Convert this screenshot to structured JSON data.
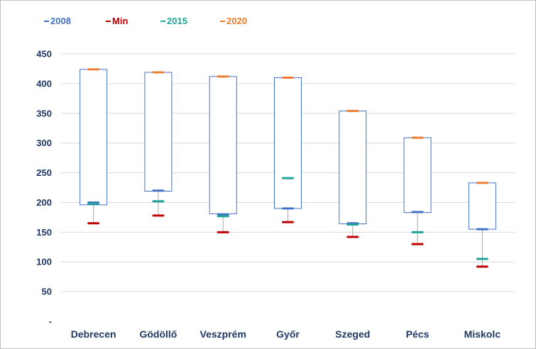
{
  "chart_data": {
    "type": "box",
    "categories": [
      "Debrecen",
      "Gödöllő",
      "Veszprém",
      "Győr",
      "Szeged",
      "Pécs",
      "Miskolc"
    ],
    "series": [
      {
        "name": "2008",
        "values": [
          200,
          220,
          180,
          190,
          165,
          184,
          155
        ],
        "color": "#4472c4"
      },
      {
        "name": "Min",
        "values": [
          165,
          178,
          150,
          167,
          142,
          130,
          92
        ],
        "color": "#c00000"
      },
      {
        "name": "2015",
        "values": [
          198,
          202,
          177,
          241,
          163,
          150,
          105
        ],
        "color": "#1fa39a"
      },
      {
        "name": "2020",
        "values": [
          424,
          419,
          412,
          410,
          354,
          309,
          233
        ],
        "color": "#ed7d31"
      }
    ],
    "box_low": [
      196,
      219,
      181,
      190,
      164,
      183,
      155
    ],
    "box_high": [
      424,
      419,
      412,
      410,
      354,
      309,
      233
    ],
    "y_ticks": [
      0,
      50,
      100,
      150,
      200,
      250,
      300,
      350,
      400,
      450
    ],
    "y_tick_labels": [
      "-",
      "50",
      "100",
      "150",
      "200",
      "250",
      "300",
      "350",
      "400",
      "450"
    ],
    "ylim": [
      0,
      450
    ],
    "grid": true,
    "legend_position": "top-left",
    "colors": {
      "box_outline": "#4472c4",
      "whisker": "#a6a6a6",
      "gridline": "#d9d9d9",
      "axis_text": "#1f3864"
    }
  }
}
